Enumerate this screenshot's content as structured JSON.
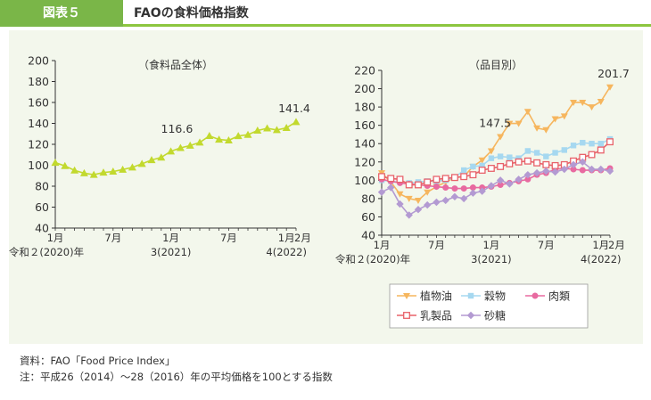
{
  "header": {
    "figure_label": "図表５",
    "title": "FAOの食料価格指数"
  },
  "chart_data": [
    {
      "type": "line",
      "title": "（食料品全体）",
      "xlabel": "",
      "ylabel": "",
      "ylim": [
        40,
        200
      ],
      "yticks": [
        40,
        60,
        80,
        100,
        120,
        140,
        160,
        180,
        200
      ],
      "xticks": [
        {
          "i": 0,
          "label": "1月",
          "sub": "令和２(2020)年"
        },
        {
          "i": 6,
          "label": "7月",
          "sub": ""
        },
        {
          "i": 12,
          "label": "1月",
          "sub": "3(2021)"
        },
        {
          "i": 18,
          "label": "7月",
          "sub": ""
        },
        {
          "i": 24,
          "label": "1月",
          "sub": "4(2022)"
        },
        {
          "i": 25,
          "label": "2月",
          "sub": ""
        }
      ],
      "grid": false,
      "series": [
        {
          "name": "",
          "color": "#c2d92e",
          "marker": "triangle-up",
          "values": [
            102.5,
            99.4,
            95.1,
            92.4,
            91.0,
            93.1,
            94.0,
            95.9,
            98.0,
            101.4,
            105.0,
            107.5,
            113.3,
            116.6,
            118.8,
            121.8,
            128.1,
            124.6,
            123.8,
            128.0,
            129.2,
            133.2,
            135.3,
            133.7,
            135.7,
            141.4
          ]
        }
      ],
      "annotations": [
        {
          "i": 13,
          "label": "116.6"
        },
        {
          "i": 25,
          "label": "141.4"
        }
      ]
    },
    {
      "type": "line",
      "title": "（品目別）",
      "xlabel": "",
      "ylabel": "",
      "ylim": [
        40,
        220
      ],
      "yticks": [
        40,
        60,
        80,
        100,
        120,
        140,
        160,
        180,
        200,
        220
      ],
      "xticks": [
        {
          "i": 0,
          "label": "1月",
          "sub": "令和２(2020)年"
        },
        {
          "i": 6,
          "label": "7月",
          "sub": ""
        },
        {
          "i": 12,
          "label": "1月",
          "sub": "3(2021)"
        },
        {
          "i": 18,
          "label": "7月",
          "sub": ""
        },
        {
          "i": 24,
          "label": "1月",
          "sub": "4(2022)"
        },
        {
          "i": 25,
          "label": "2月",
          "sub": ""
        }
      ],
      "grid": false,
      "legend_position": "bottom",
      "series": [
        {
          "name": "植物油",
          "color": "#f6b65e",
          "marker": "triangle-down",
          "values": [
            108,
            98,
            85,
            80,
            78,
            87,
            93,
            98,
            103,
            104,
            115,
            122,
            132,
            147.5,
            162,
            162,
            175,
            157,
            155,
            167,
            170,
            185,
            185,
            180,
            186,
            201.7
          ]
        },
        {
          "name": "穀物",
          "color": "#a6d8f0",
          "marker": "square",
          "values": [
            100,
            99,
            98,
            97,
            98,
            99,
            99,
            100,
            103,
            111,
            115,
            116,
            124,
            126,
            125,
            124,
            132,
            130,
            126,
            130,
            133,
            138,
            141,
            140,
            140,
            145
          ]
        },
        {
          "name": "肉類",
          "color": "#e86aa0",
          "marker": "circle",
          "values": [
            101,
            99,
            97,
            96,
            95,
            94,
            93,
            92,
            91,
            91,
            92,
            92,
            93,
            95,
            97,
            99,
            101,
            106,
            108,
            112,
            113,
            112,
            111,
            111,
            111,
            113
          ]
        },
        {
          "name": "乳製品",
          "color": "#e8626a",
          "marker": "square-open",
          "values": [
            104,
            102,
            101,
            95,
            95,
            98,
            101,
            102,
            103,
            104,
            106,
            111,
            113,
            115,
            118,
            120,
            121,
            119,
            117,
            116,
            117,
            121,
            125,
            128,
            133,
            142
          ]
        },
        {
          "name": "砂糖",
          "color": "#b39ad2",
          "marker": "diamond",
          "values": [
            87,
            92,
            74,
            62,
            68,
            73,
            76,
            78,
            82,
            80,
            86,
            88,
            94,
            100,
            96,
            101,
            106,
            108,
            110,
            109,
            112,
            117,
            120,
            112,
            112,
            110
          ]
        }
      ],
      "annotations": [
        {
          "i": 13,
          "label": "147.5"
        },
        {
          "i": 25,
          "label": "201.7"
        }
      ]
    }
  ],
  "notes": [
    "資料：FAO「Food Price Index」",
    "注：平成26（2014）～28（2016）年の平均価格を100とする指数"
  ]
}
